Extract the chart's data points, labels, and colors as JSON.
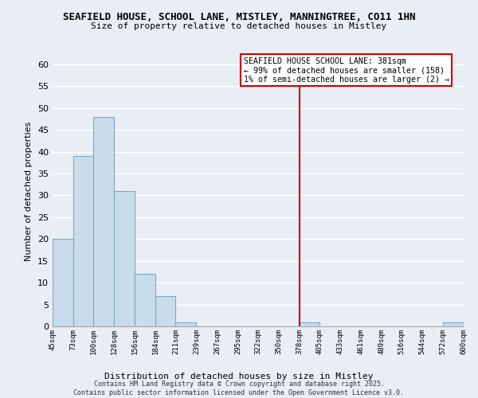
{
  "title": "SEAFIELD HOUSE, SCHOOL LANE, MISTLEY, MANNINGTREE, CO11 1HN",
  "subtitle": "Size of property relative to detached houses in Mistley",
  "xlabel": "Distribution of detached houses by size in Mistley",
  "ylabel": "Number of detached properties",
  "bar_color": "#c8dcea",
  "bar_edge_color": "#7aaac8",
  "background_color": "#e8eef4",
  "grid_color": "#ffffff",
  "bins": [
    45,
    73,
    100,
    128,
    156,
    184,
    211,
    239,
    267,
    295,
    322,
    350,
    378,
    405,
    433,
    461,
    489,
    516,
    544,
    572,
    600
  ],
  "bin_labels": [
    "45sqm",
    "73sqm",
    "100sqm",
    "128sqm",
    "156sqm",
    "184sqm",
    "211sqm",
    "239sqm",
    "267sqm",
    "295sqm",
    "322sqm",
    "350sqm",
    "378sqm",
    "405sqm",
    "433sqm",
    "461sqm",
    "489sqm",
    "516sqm",
    "544sqm",
    "572sqm",
    "600sqm"
  ],
  "counts": [
    20,
    39,
    48,
    31,
    12,
    7,
    1,
    0,
    0,
    0,
    0,
    0,
    1,
    0,
    0,
    0,
    0,
    0,
    0,
    1
  ],
  "vline_x": 378,
  "vline_color": "#cc0000",
  "annotation_text": "SEAFIELD HOUSE SCHOOL LANE: 381sqm\n← 99% of detached houses are smaller (158)\n1% of semi-detached houses are larger (2) →",
  "ylim": [
    0,
    62
  ],
  "yticks": [
    0,
    5,
    10,
    15,
    20,
    25,
    30,
    35,
    40,
    45,
    50,
    55,
    60
  ],
  "footer1": "Contains HM Land Registry data © Crown copyright and database right 2025.",
  "footer2": "Contains public sector information licensed under the Open Government Licence v3.0."
}
